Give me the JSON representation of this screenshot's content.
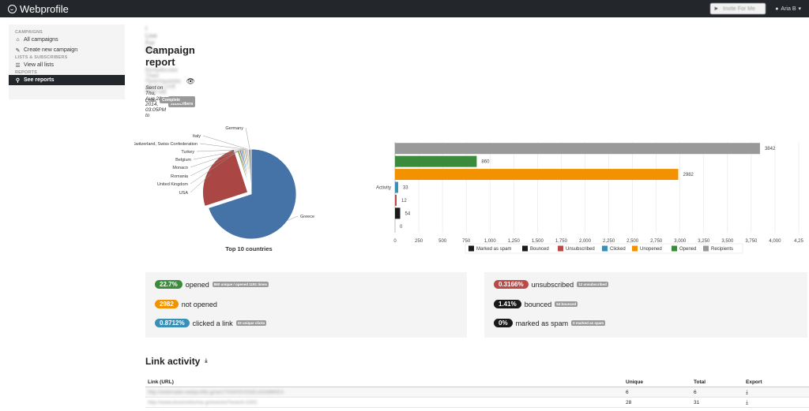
{
  "app": {
    "name": "Webprofile"
  },
  "topbar": {
    "send_label": "Invite For Me",
    "user_label": "Aria B"
  },
  "sidebar": {
    "sections": [
      {
        "header": "CAMPAIGNS",
        "items": [
          {
            "label": "All campaigns",
            "icon": "home-icon"
          },
          {
            "label": "Create new campaign",
            "icon": "edit-icon"
          }
        ]
      },
      {
        "header": "LISTS & SUBSCRIBERS",
        "items": [
          {
            "label": "View all lists",
            "icon": "list-icon"
          }
        ]
      },
      {
        "header": "REPORTS",
        "items": [
          {
            "label": "See reports",
            "icon": "search-icon",
            "active": true
          }
        ]
      }
    ]
  },
  "page": {
    "breadcrumb": "I Live For Me",
    "title": "Campaign report",
    "subject": "Εκπαιδευτικό Υλικό Προετοιμασίας για το I LIVE FOR ME",
    "sent_prefix": "Sent on Thu, Aug 28, 2014, 03:05PM to",
    "subscribers_badge": "3,842 subscribers",
    "lists_label": "Lists:",
    "list_badge": "Complete"
  },
  "chart_data": [
    {
      "type": "pie",
      "title": "Top 10 countries",
      "slices": [
        {
          "label": "Greece",
          "value": 70,
          "color": "#4572a7"
        },
        {
          "label": "USA",
          "value": 25,
          "color": "#aa4643"
        },
        {
          "label": "United Kingdom",
          "value": 0.8,
          "color": "#89a54e"
        },
        {
          "label": "Romania",
          "value": 0.6,
          "color": "#80699b"
        },
        {
          "label": "Monaco",
          "value": 0.6,
          "color": "#3d96ae"
        },
        {
          "label": "Belgium",
          "value": 0.5,
          "color": "#db843d"
        },
        {
          "label": "Turkey",
          "value": 0.5,
          "color": "#92a8cd"
        },
        {
          "label": "Switzerland, Swiss Confederation",
          "value": 0.5,
          "color": "#a47d7c"
        },
        {
          "label": "Italy",
          "value": 0.5,
          "color": "#b5ca92"
        },
        {
          "label": "Germany",
          "value": 1.0,
          "color": "#999999"
        }
      ]
    },
    {
      "type": "bar",
      "orientation": "horizontal",
      "category": "Activity",
      "xlim": [
        0,
        4250
      ],
      "xticks": [
        "0",
        "250",
        "500",
        "750",
        "1,000",
        "1,250",
        "1,500",
        "1,750",
        "2,000",
        "2,250",
        "2,500",
        "2,750",
        "3,000",
        "3,250",
        "3,500",
        "3,750",
        "4,000",
        "4,25"
      ],
      "grid": true,
      "legend_position": "bottom",
      "series": [
        {
          "name": "Recipients",
          "value": 3842,
          "color": "#999999"
        },
        {
          "name": "Opened",
          "value": 860,
          "color": "#3c8b3c"
        },
        {
          "name": "Unopened",
          "value": 2982,
          "color": "#f39200"
        },
        {
          "name": "Clicked",
          "value": 33,
          "color": "#3a8fb7"
        },
        {
          "name": "Unsubscribed",
          "value": 12,
          "color": "#b94a48"
        },
        {
          "name": "Bounced",
          "value": 54,
          "color": "#1a1a1a"
        },
        {
          "name": "Marked as spam",
          "value": 0,
          "color": "#1a1a1a"
        }
      ],
      "legend_order": [
        "Marked as spam",
        "Bounced",
        "Unsubscribed",
        "Clicked",
        "Unopened",
        "Opened",
        "Recipients"
      ]
    }
  ],
  "stats_left": [
    {
      "pill": "22.7%",
      "pill_color": "#3c8b3c",
      "label": "opened",
      "badge": "860 unique / opened 1191 times"
    },
    {
      "pill": "2982",
      "pill_color": "#f39200",
      "label": "not opened",
      "badge": ""
    },
    {
      "pill": "0.8712%",
      "pill_color": "#3a8fb7",
      "label": "clicked a link",
      "badge": "33 unique clicks"
    }
  ],
  "stats_right": [
    {
      "pill": "0.3166%",
      "pill_color": "#b94a48",
      "label": "unsubscribed",
      "badge": "12 unsubscribed"
    },
    {
      "pill": "1.41%",
      "pill_color": "#1a1a1a",
      "label": "bounced",
      "badge": "54 bounced"
    },
    {
      "pill": "0%",
      "pill_color": "#1a1a1a",
      "label": "marked as spam",
      "badge": "0 marked as spam"
    }
  ],
  "link_activity": {
    "title": "Link activity",
    "columns": [
      "Link (URL)",
      "Unique",
      "Total",
      "Export"
    ],
    "rows": [
      {
        "url": "http://webmailer.webprofile.gr/w/c7Vh0hSVG0lCxG0dMKEA",
        "unique": "6",
        "total": "6"
      },
      {
        "url": "http://www.ilovemeforme.gr/events/?event=1001",
        "unique": "28",
        "total": "31"
      }
    ]
  }
}
